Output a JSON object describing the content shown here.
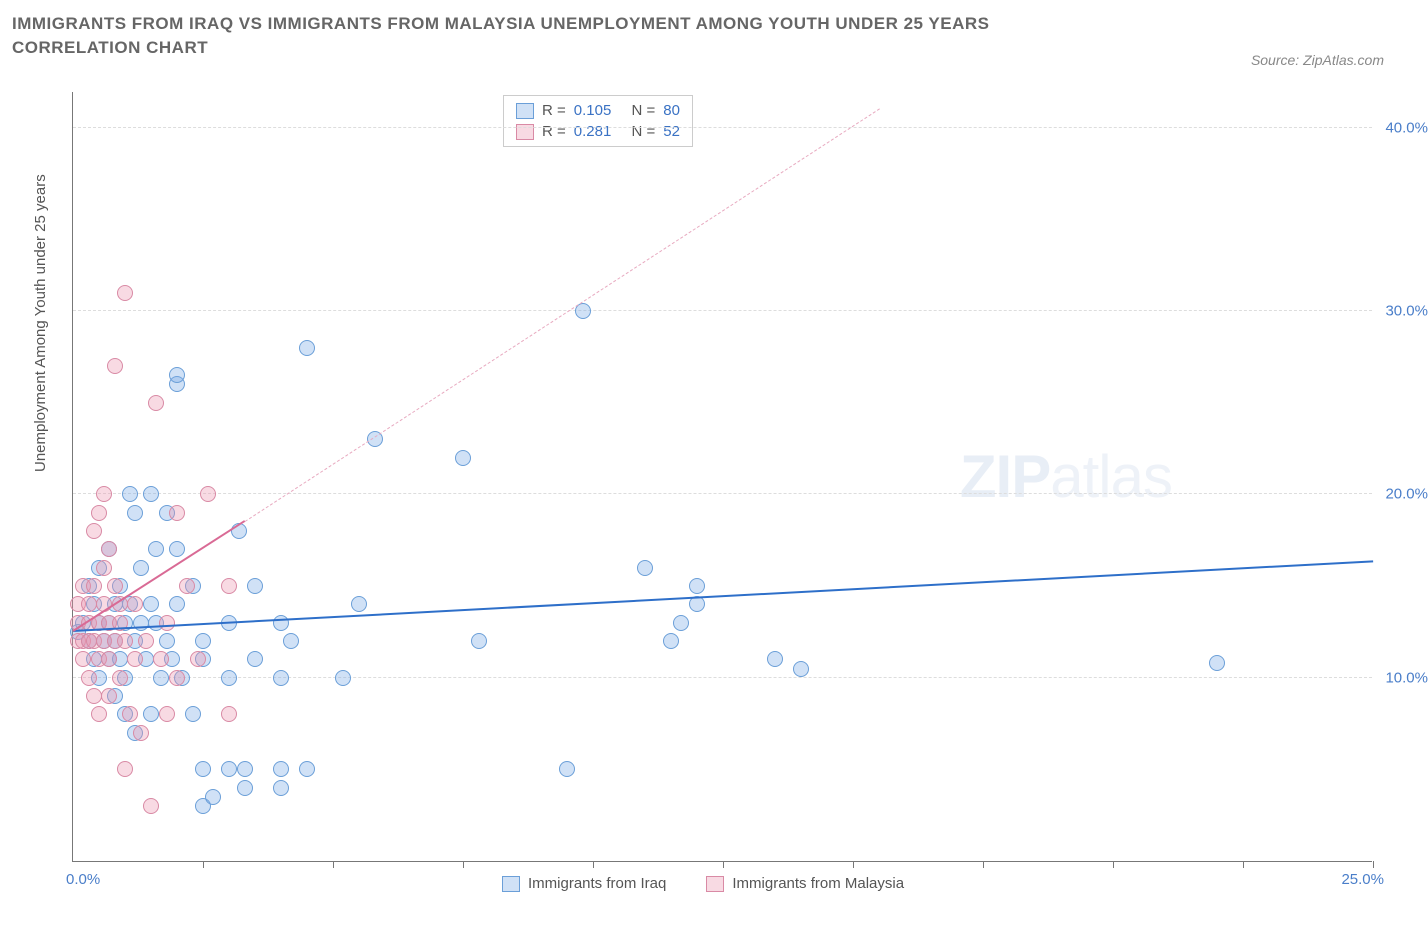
{
  "title": "IMMIGRANTS FROM IRAQ VS IMMIGRANTS FROM MALAYSIA UNEMPLOYMENT AMONG YOUTH UNDER 25 YEARS CORRELATION CHART",
  "source": "Source: ZipAtlas.com",
  "watermark_bold": "ZIP",
  "watermark_thin": "atlas",
  "ylabel": "Unemployment Among Youth under 25 years",
  "xaxis": {
    "min_label": "0.0%",
    "max_label": "25.0%",
    "min": 0,
    "max": 25,
    "ticks": [
      2.5,
      5,
      7.5,
      10,
      12.5,
      15,
      17.5,
      20,
      22.5,
      25
    ]
  },
  "yaxis": {
    "min": 0,
    "max": 42,
    "ticks": [
      10,
      20,
      30,
      40
    ],
    "tick_labels": [
      "10.0%",
      "20.0%",
      "30.0%",
      "40.0%"
    ]
  },
  "grid_color": "#dddddd",
  "axis_color": "#777777",
  "series": [
    {
      "name": "Immigrants from Iraq",
      "key": "iraq",
      "fill": "rgba(120,170,230,0.35)",
      "stroke": "#6b9fd8",
      "radius": 8,
      "stats": {
        "R": "0.105",
        "N": "80"
      },
      "trend": {
        "x1": 0,
        "y1": 12.5,
        "x2": 25,
        "y2": 16.3,
        "color": "#2e6fc9",
        "style": "solid"
      },
      "points": [
        [
          0.1,
          12.5
        ],
        [
          0.2,
          13
        ],
        [
          0.3,
          12
        ],
        [
          0.3,
          15
        ],
        [
          0.4,
          11
        ],
        [
          0.4,
          14
        ],
        [
          0.5,
          13
        ],
        [
          0.5,
          10
        ],
        [
          0.5,
          16
        ],
        [
          0.6,
          12
        ],
        [
          0.7,
          11
        ],
        [
          0.7,
          13
        ],
        [
          0.7,
          17
        ],
        [
          0.8,
          12
        ],
        [
          0.8,
          9
        ],
        [
          0.8,
          14
        ],
        [
          0.9,
          11
        ],
        [
          0.9,
          15
        ],
        [
          1.0,
          13
        ],
        [
          1.0,
          10
        ],
        [
          1.0,
          8
        ],
        [
          1.1,
          14
        ],
        [
          1.1,
          20
        ],
        [
          1.2,
          12
        ],
        [
          1.2,
          19
        ],
        [
          1.2,
          7
        ],
        [
          1.3,
          13
        ],
        [
          1.3,
          16
        ],
        [
          1.4,
          11
        ],
        [
          1.5,
          14
        ],
        [
          1.5,
          20
        ],
        [
          1.5,
          8
        ],
        [
          1.6,
          13
        ],
        [
          1.6,
          17
        ],
        [
          1.7,
          10
        ],
        [
          1.8,
          12
        ],
        [
          1.8,
          19
        ],
        [
          1.9,
          11
        ],
        [
          2.0,
          14
        ],
        [
          2.0,
          17
        ],
        [
          2.0,
          26
        ],
        [
          2.0,
          26.5
        ],
        [
          2.1,
          10
        ],
        [
          2.3,
          15
        ],
        [
          2.3,
          8
        ],
        [
          2.5,
          11
        ],
        [
          2.5,
          5
        ],
        [
          2.5,
          3
        ],
        [
          2.5,
          12
        ],
        [
          3.0,
          13
        ],
        [
          3.0,
          5
        ],
        [
          3.0,
          10
        ],
        [
          3.2,
          18
        ],
        [
          3.3,
          5
        ],
        [
          3.3,
          4
        ],
        [
          3.5,
          15
        ],
        [
          3.5,
          11
        ],
        [
          4.0,
          13
        ],
        [
          4.0,
          5
        ],
        [
          4.0,
          4
        ],
        [
          4.0,
          10
        ],
        [
          4.2,
          12
        ],
        [
          4.5,
          28
        ],
        [
          4.5,
          5
        ],
        [
          5.2,
          10
        ],
        [
          5.5,
          14
        ],
        [
          5.8,
          23
        ],
        [
          7.5,
          22
        ],
        [
          7.8,
          12
        ],
        [
          9.5,
          5
        ],
        [
          9.8,
          30
        ],
        [
          11.5,
          12
        ],
        [
          11.7,
          13
        ],
        [
          12.0,
          15
        ],
        [
          12.0,
          14
        ],
        [
          11.0,
          16
        ],
        [
          13.5,
          11
        ],
        [
          14.0,
          10.5
        ],
        [
          22.0,
          10.8
        ],
        [
          2.7,
          3.5
        ]
      ]
    },
    {
      "name": "Immigrants from Malaysia",
      "key": "malaysia",
      "fill": "rgba(235,150,175,0.35)",
      "stroke": "#d98aa5",
      "radius": 8,
      "stats": {
        "R": "0.281",
        "N": "52"
      },
      "trend_solid": {
        "x1": 0,
        "y1": 12.5,
        "x2": 3.3,
        "y2": 18.5,
        "color": "#d96a95",
        "style": "solid"
      },
      "trend": {
        "x1": 3.3,
        "y1": 18.5,
        "x2": 15.5,
        "y2": 41,
        "color": "#e8aac0",
        "style": "dashed"
      },
      "points": [
        [
          0.1,
          12
        ],
        [
          0.1,
          13
        ],
        [
          0.1,
          14
        ],
        [
          0.2,
          12
        ],
        [
          0.2,
          11
        ],
        [
          0.2,
          15
        ],
        [
          0.3,
          13
        ],
        [
          0.3,
          12
        ],
        [
          0.3,
          10
        ],
        [
          0.3,
          14
        ],
        [
          0.4,
          12
        ],
        [
          0.4,
          9
        ],
        [
          0.4,
          15
        ],
        [
          0.4,
          18
        ],
        [
          0.5,
          13
        ],
        [
          0.5,
          11
        ],
        [
          0.5,
          19
        ],
        [
          0.5,
          8
        ],
        [
          0.6,
          12
        ],
        [
          0.6,
          14
        ],
        [
          0.6,
          16
        ],
        [
          0.6,
          20
        ],
        [
          0.7,
          13
        ],
        [
          0.7,
          11
        ],
        [
          0.7,
          9
        ],
        [
          0.7,
          17
        ],
        [
          0.8,
          12
        ],
        [
          0.8,
          15
        ],
        [
          0.8,
          27
        ],
        [
          0.9,
          13
        ],
        [
          0.9,
          14
        ],
        [
          0.9,
          10
        ],
        [
          1.0,
          31
        ],
        [
          1.0,
          12
        ],
        [
          1.0,
          5
        ],
        [
          1.1,
          8
        ],
        [
          1.2,
          14
        ],
        [
          1.2,
          11
        ],
        [
          1.3,
          7
        ],
        [
          1.4,
          12
        ],
        [
          1.6,
          25
        ],
        [
          1.7,
          11
        ],
        [
          1.8,
          13
        ],
        [
          1.8,
          8
        ],
        [
          2.0,
          10
        ],
        [
          2.0,
          19
        ],
        [
          2.2,
          15
        ],
        [
          2.4,
          11
        ],
        [
          3.0,
          8
        ],
        [
          3.0,
          15
        ],
        [
          1.5,
          3
        ],
        [
          2.6,
          20
        ]
      ]
    }
  ],
  "stats_legend": {
    "R_label": "R =",
    "N_label": "N ="
  },
  "bottom_legend": {
    "items": [
      "Immigrants from Iraq",
      "Immigrants from Malaysia"
    ]
  }
}
